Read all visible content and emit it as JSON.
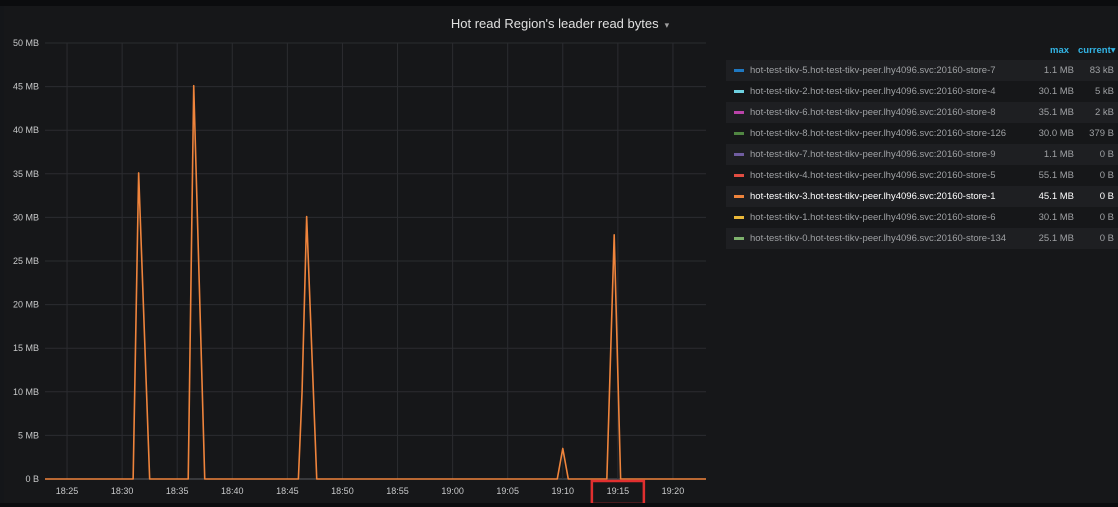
{
  "panel": {
    "title": "Hot read Region's leader read bytes",
    "title_caret": "▾"
  },
  "legend": {
    "header_max": "max",
    "header_current": "current▾",
    "items": [
      {
        "name": "hot-test-tikv-5.hot-test-tikv-peer.lhy4096.svc:20160-store-7",
        "max": "1.1 MB",
        "current": "83 kB",
        "color": "#1f78c1"
      },
      {
        "name": "hot-test-tikv-2.hot-test-tikv-peer.lhy4096.svc:20160-store-4",
        "max": "30.1 MB",
        "current": "5 kB",
        "color": "#6ed0e0"
      },
      {
        "name": "hot-test-tikv-6.hot-test-tikv-peer.lhy4096.svc:20160-store-8",
        "max": "35.1 MB",
        "current": "2 kB",
        "color": "#ba43a9"
      },
      {
        "name": "hot-test-tikv-8.hot-test-tikv-peer.lhy4096.svc:20160-store-126",
        "max": "30.0 MB",
        "current": "379 B",
        "color": "#508642"
      },
      {
        "name": "hot-test-tikv-7.hot-test-tikv-peer.lhy4096.svc:20160-store-9",
        "max": "1.1 MB",
        "current": "0 B",
        "color": "#705da0"
      },
      {
        "name": "hot-test-tikv-4.hot-test-tikv-peer.lhy4096.svc:20160-store-5",
        "max": "55.1 MB",
        "current": "0 B",
        "color": "#e24d42"
      },
      {
        "name": "hot-test-tikv-3.hot-test-tikv-peer.lhy4096.svc:20160-store-1",
        "max": "45.1 MB",
        "current": "0 B",
        "color": "#ef843c"
      },
      {
        "name": "hot-test-tikv-1.hot-test-tikv-peer.lhy4096.svc:20160-store-6",
        "max": "30.1 MB",
        "current": "0 B",
        "color": "#eab839"
      },
      {
        "name": "hot-test-tikv-0.hot-test-tikv-peer.lhy4096.svc:20160-store-134",
        "max": "25.1 MB",
        "current": "0 B",
        "color": "#7eb26d"
      }
    ]
  },
  "chart_data": {
    "type": "line",
    "title": "Hot read Region's leader read bytes",
    "ylabel": "",
    "xlabel": "",
    "y_unit": "MB",
    "ylim": [
      0,
      50
    ],
    "y_ticks": [
      "0 B",
      "5 MB",
      "10 MB",
      "15 MB",
      "20 MB",
      "25 MB",
      "30 MB",
      "35 MB",
      "40 MB",
      "45 MB",
      "50 MB"
    ],
    "x_ticks": [
      "18:25",
      "18:30",
      "18:35",
      "18:40",
      "18:45",
      "18:50",
      "18:55",
      "19:00",
      "19:05",
      "19:10",
      "19:15",
      "19:20"
    ],
    "xlim": [
      "18:23",
      "19:23"
    ],
    "grid": true,
    "legend_position": "right",
    "highlighted_x_tick": "19:15",
    "highlight_color": "#e02f2f",
    "series": [
      {
        "name": "hot-test-tikv-3.hot-test-tikv-peer.lhy4096.svc:20160-store-1",
        "color": "#ef843c",
        "points": [
          [
            "18:23:00",
            0
          ],
          [
            "18:31:00",
            0
          ],
          [
            "18:31:30",
            35.1
          ],
          [
            "18:32:30",
            0
          ],
          [
            "18:36:00",
            0
          ],
          [
            "18:36:30",
            45.1
          ],
          [
            "18:37:30",
            0
          ],
          [
            "18:46:00",
            0
          ],
          [
            "18:46:20",
            10
          ],
          [
            "18:46:45",
            30.1
          ],
          [
            "18:47:40",
            0
          ],
          [
            "19:09:30",
            0
          ],
          [
            "19:10:00",
            3.5
          ],
          [
            "19:10:30",
            0
          ],
          [
            "19:14:00",
            0
          ],
          [
            "19:14:40",
            28.0
          ],
          [
            "19:15:15",
            0
          ],
          [
            "19:23:00",
            0
          ]
        ]
      }
    ]
  }
}
